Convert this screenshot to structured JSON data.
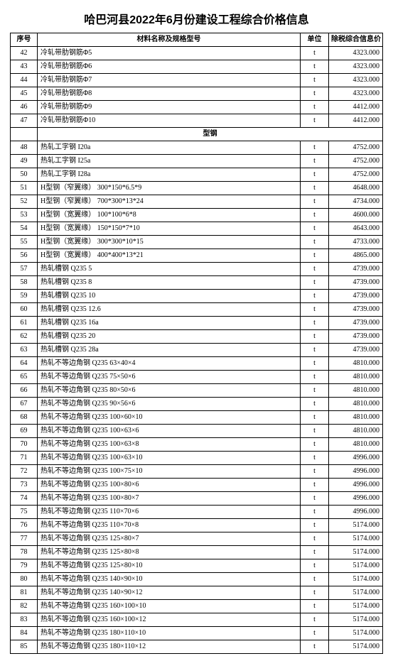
{
  "title": "哈巴河县2022年6月份建设工程综合价格信息",
  "headers": {
    "seq": "序号",
    "name": "材料名称及规格型号",
    "unit": "单位",
    "price": "除税综合信息价"
  },
  "sectionLabel": "型钢",
  "rowsA": [
    {
      "seq": "42",
      "name": "冷轧带肋钢筋Φ5",
      "unit": "t",
      "price": "4323.000"
    },
    {
      "seq": "43",
      "name": "冷轧带肋钢筋Φ6",
      "unit": "t",
      "price": "4323.000"
    },
    {
      "seq": "44",
      "name": "冷轧带肋钢筋Φ7",
      "unit": "t",
      "price": "4323.000"
    },
    {
      "seq": "45",
      "name": "冷轧带肋钢筋Φ8",
      "unit": "t",
      "price": "4323.000"
    },
    {
      "seq": "46",
      "name": "冷轧带肋钢筋Φ9",
      "unit": "t",
      "price": "4412.000"
    },
    {
      "seq": "47",
      "name": "冷轧带肋钢筋Φ10",
      "unit": "t",
      "price": "4412.000"
    }
  ],
  "rowsB": [
    {
      "seq": "48",
      "name": "热轧工字钢 I20a",
      "unit": "t",
      "price": "4752.000"
    },
    {
      "seq": "49",
      "name": "热轧工字钢 I25a",
      "unit": "t",
      "price": "4752.000"
    },
    {
      "seq": "50",
      "name": "热轧工字钢 I28a",
      "unit": "t",
      "price": "4752.000"
    },
    {
      "seq": "51",
      "name": "H型钢（窄翼缘） 300*150*6.5*9",
      "unit": "t",
      "price": "4648.000"
    },
    {
      "seq": "52",
      "name": "H型钢（窄翼缘） 700*300*13*24",
      "unit": "t",
      "price": "4734.000"
    },
    {
      "seq": "53",
      "name": "H型钢（宽翼缘） 100*100*6*8",
      "unit": "t",
      "price": "4600.000"
    },
    {
      "seq": "54",
      "name": "H型钢（宽翼缘） 150*150*7*10",
      "unit": "t",
      "price": "4643.000"
    },
    {
      "seq": "55",
      "name": "H型钢（宽翼缘） 300*300*10*15",
      "unit": "t",
      "price": "4733.000"
    },
    {
      "seq": "56",
      "name": "H型钢（宽翼缘） 400*400*13*21",
      "unit": "t",
      "price": "4865.000"
    },
    {
      "seq": "57",
      "name": "热轧槽钢 Q235 5",
      "unit": "t",
      "price": "4739.000"
    },
    {
      "seq": "58",
      "name": "热轧槽钢 Q235 8",
      "unit": "t",
      "price": "4739.000"
    },
    {
      "seq": "59",
      "name": "热轧槽钢 Q235 10",
      "unit": "t",
      "price": "4739.000"
    },
    {
      "seq": "60",
      "name": "热轧槽钢 Q235 12.6",
      "unit": "t",
      "price": "4739.000"
    },
    {
      "seq": "61",
      "name": "热轧槽钢 Q235 16a",
      "unit": "t",
      "price": "4739.000"
    },
    {
      "seq": "62",
      "name": "热轧槽钢 Q235 20",
      "unit": "t",
      "price": "4739.000"
    },
    {
      "seq": "63",
      "name": "热轧槽钢 Q235 28a",
      "unit": "t",
      "price": "4739.000"
    },
    {
      "seq": "64",
      "name": "热轧不等边角钢 Q235 63×40×4",
      "unit": "t",
      "price": "4810.000"
    },
    {
      "seq": "65",
      "name": "热轧不等边角钢 Q235 75×50×6",
      "unit": "t",
      "price": "4810.000"
    },
    {
      "seq": "66",
      "name": "热轧不等边角钢 Q235 80×50×6",
      "unit": "t",
      "price": "4810.000"
    },
    {
      "seq": "67",
      "name": "热轧不等边角钢 Q235 90×56×6",
      "unit": "t",
      "price": "4810.000"
    },
    {
      "seq": "68",
      "name": "热轧不等边角钢 Q235 100×60×10",
      "unit": "t",
      "price": "4810.000"
    },
    {
      "seq": "69",
      "name": "热轧不等边角钢 Q235 100×63×6",
      "unit": "t",
      "price": "4810.000"
    },
    {
      "seq": "70",
      "name": "热轧不等边角钢 Q235 100×63×8",
      "unit": "t",
      "price": "4810.000"
    },
    {
      "seq": "71",
      "name": "热轧不等边角钢 Q235 100×63×10",
      "unit": "t",
      "price": "4996.000"
    },
    {
      "seq": "72",
      "name": "热轧不等边角钢 Q235 100×75×10",
      "unit": "t",
      "price": "4996.000"
    },
    {
      "seq": "73",
      "name": "热轧不等边角钢 Q235 100×80×6",
      "unit": "t",
      "price": "4996.000"
    },
    {
      "seq": "74",
      "name": "热轧不等边角钢 Q235 100×80×7",
      "unit": "t",
      "price": "4996.000"
    },
    {
      "seq": "75",
      "name": "热轧不等边角钢 Q235 110×70×6",
      "unit": "t",
      "price": "4996.000"
    },
    {
      "seq": "76",
      "name": "热轧不等边角钢 Q235 110×70×8",
      "unit": "t",
      "price": "5174.000"
    },
    {
      "seq": "77",
      "name": "热轧不等边角钢 Q235 125×80×7",
      "unit": "t",
      "price": "5174.000"
    },
    {
      "seq": "78",
      "name": "热轧不等边角钢 Q235 125×80×8",
      "unit": "t",
      "price": "5174.000"
    },
    {
      "seq": "79",
      "name": "热轧不等边角钢 Q235 125×80×10",
      "unit": "t",
      "price": "5174.000"
    },
    {
      "seq": "80",
      "name": "热轧不等边角钢 Q235 140×90×10",
      "unit": "t",
      "price": "5174.000"
    },
    {
      "seq": "81",
      "name": "热轧不等边角钢 Q235 140×90×12",
      "unit": "t",
      "price": "5174.000"
    },
    {
      "seq": "82",
      "name": "热轧不等边角钢 Q235 160×100×10",
      "unit": "t",
      "price": "5174.000"
    },
    {
      "seq": "83",
      "name": "热轧不等边角钢 Q235 160×100×12",
      "unit": "t",
      "price": "5174.000"
    },
    {
      "seq": "84",
      "name": "热轧不等边角钢 Q235 180×110×10",
      "unit": "t",
      "price": "5174.000"
    },
    {
      "seq": "85",
      "name": "热轧不等边角钢 Q235 180×110×12",
      "unit": "t",
      "price": "5174.000"
    }
  ]
}
